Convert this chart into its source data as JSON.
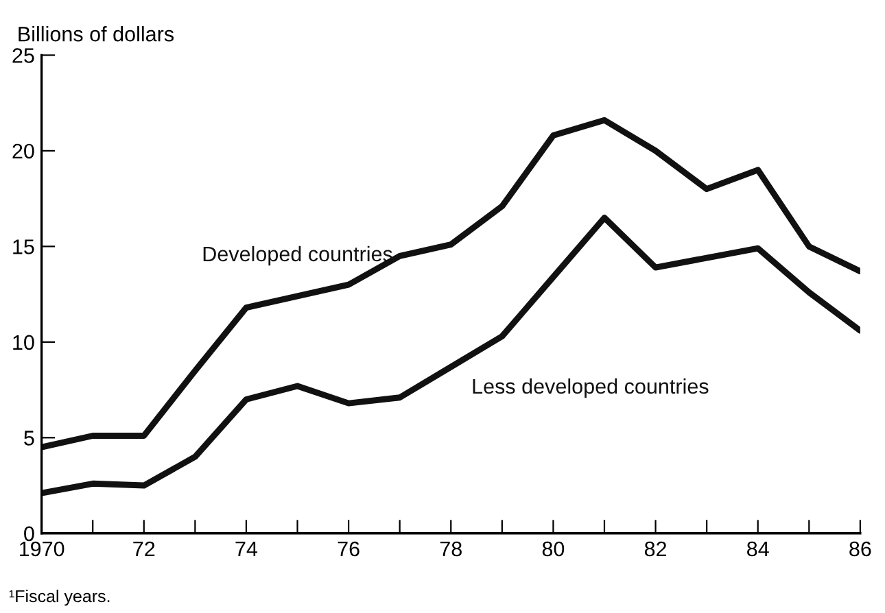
{
  "chart_data": {
    "type": "line",
    "ylabel": "Billions of dollars",
    "x": [
      1970,
      1971,
      1972,
      1973,
      1974,
      1975,
      1976,
      1977,
      1978,
      1979,
      1980,
      1981,
      1982,
      1983,
      1984,
      1985,
      1986
    ],
    "series": [
      {
        "name": "Developed countries",
        "color": "#111111",
        "values": [
          4.5,
          5.1,
          5.1,
          8.5,
          11.8,
          12.4,
          13.0,
          14.5,
          15.1,
          17.1,
          20.8,
          21.6,
          20.0,
          18.0,
          19.0,
          15.0,
          13.7
        ]
      },
      {
        "name": "Less developed countries",
        "color": "#111111",
        "values": [
          2.1,
          2.6,
          2.5,
          4.0,
          7.0,
          7.7,
          6.8,
          7.1,
          8.7,
          10.3,
          13.4,
          16.5,
          13.9,
          14.4,
          14.9,
          12.6,
          10.6
        ]
      }
    ],
    "xlim": [
      1970,
      1986
    ],
    "ylim": [
      0,
      25
    ],
    "xticks": [
      1970,
      {
        "value": 1971,
        "label": null
      },
      {
        "value": 1972,
        "label": "72"
      },
      {
        "value": 1973,
        "label": null
      },
      {
        "value": 1974,
        "label": "74"
      },
      {
        "value": 1975,
        "label": null
      },
      {
        "value": 1976,
        "label": "76"
      },
      {
        "value": 1977,
        "label": null
      },
      {
        "value": 1978,
        "label": "78"
      },
      {
        "value": 1979,
        "label": null
      },
      {
        "value": 1980,
        "label": "80"
      },
      {
        "value": 1981,
        "label": null
      },
      {
        "value": 1982,
        "label": "82"
      },
      {
        "value": 1983,
        "label": null
      },
      {
        "value": 1984,
        "label": "84"
      },
      {
        "value": 1985,
        "label": null
      },
      {
        "value": 1986,
        "label": "86"
      }
    ],
    "yticks": [
      0,
      5,
      10,
      15,
      20,
      25
    ],
    "annotations": [
      "¹Fiscal years."
    ],
    "grid": false,
    "legend": false,
    "marker": "none",
    "line_style": "solid"
  }
}
